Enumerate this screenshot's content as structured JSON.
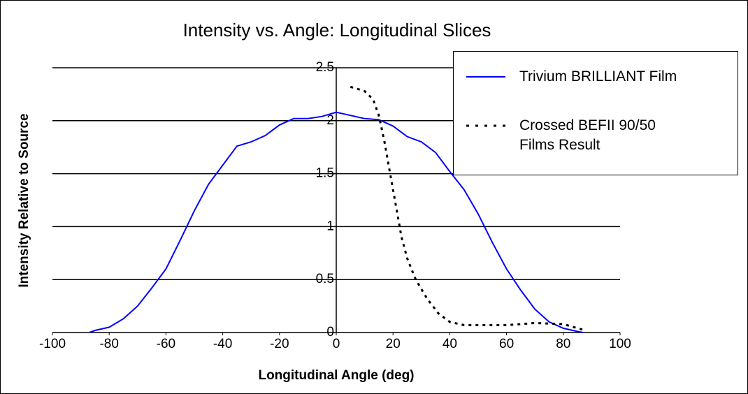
{
  "chart_data": {
    "type": "line",
    "title": "Intensity vs. Angle: Longitudinal Slices",
    "x_label": "Longitudinal Angle (deg)",
    "y_label": "Intensity Relative to Source",
    "xlim": [
      -100,
      100
    ],
    "xticks": [
      -100,
      -80,
      -60,
      -40,
      -20,
      0,
      20,
      40,
      60,
      80,
      100
    ],
    "ylim": [
      0,
      2.5
    ],
    "yticks": [
      0,
      0.5,
      1,
      1.5,
      2,
      2.5
    ],
    "grid": true,
    "legend": "upper right",
    "series": [
      {
        "name": "Trivium BRILLIANT Film",
        "color": "#0000ff",
        "style": "solid",
        "x": [
          -87,
          -85,
          -80,
          -75,
          -70,
          -65,
          -60,
          -55,
          -50,
          -45,
          -40,
          -35,
          -30,
          -25,
          -20,
          -15,
          -10,
          -5,
          0,
          5,
          10,
          15,
          20,
          25,
          30,
          35,
          40,
          45,
          50,
          55,
          60,
          65,
          70,
          75,
          80,
          85,
          87
        ],
        "values": [
          0,
          0.02,
          0.05,
          0.13,
          0.25,
          0.42,
          0.6,
          0.87,
          1.15,
          1.4,
          1.58,
          1.76,
          1.8,
          1.86,
          1.96,
          2.02,
          2.02,
          2.04,
          2.08,
          2.05,
          2.02,
          2.01,
          1.95,
          1.85,
          1.8,
          1.7,
          1.52,
          1.35,
          1.12,
          0.85,
          0.6,
          0.4,
          0.22,
          0.1,
          0.04,
          0.01,
          0
        ]
      },
      {
        "name": "Crossed BEFII 90/50 Films Result",
        "color": "#000000",
        "style": "dashed",
        "x": [
          5,
          10,
          13,
          15,
          17,
          19,
          21,
          23,
          25,
          28,
          32,
          36,
          40,
          45,
          60,
          70,
          80,
          85,
          88
        ],
        "values": [
          2.32,
          2.28,
          2.2,
          2.05,
          1.8,
          1.5,
          1.2,
          0.9,
          0.7,
          0.5,
          0.32,
          0.18,
          0.1,
          0.07,
          0.07,
          0.09,
          0.08,
          0.04,
          0.02
        ]
      }
    ]
  }
}
